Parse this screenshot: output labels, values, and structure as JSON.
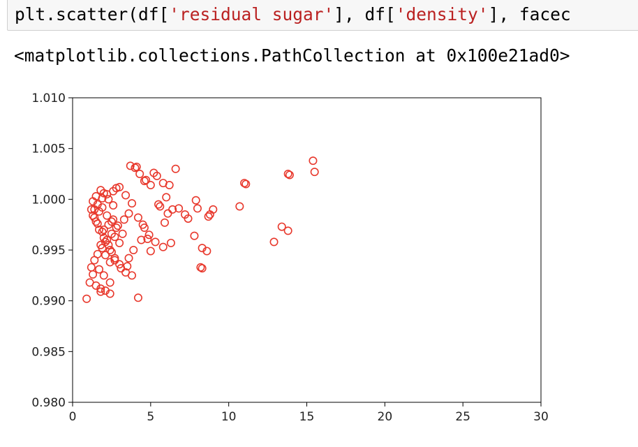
{
  "code_cell": {
    "prefix": "plt.scatter(df[",
    "arg1": "'residual sugar'",
    "mid": "], df[",
    "arg2": "'density'",
    "suffix": "], facec"
  },
  "output": {
    "text": "<matplotlib.collections.PathCollection at 0x100e21ad0>"
  },
  "chart_data": {
    "type": "scatter",
    "title": "",
    "xlabel": "",
    "ylabel": "",
    "xlim": [
      0,
      30
    ],
    "ylim": [
      0.98,
      1.01
    ],
    "x_ticks": [
      "0",
      "5",
      "10",
      "15",
      "20",
      "25",
      "30"
    ],
    "y_ticks": [
      "0.980",
      "0.985",
      "0.990",
      "0.995",
      "1.000",
      "1.005",
      "1.010"
    ],
    "grid": false,
    "marker": {
      "shape": "circle",
      "face": "none",
      "edge_color": "#e8382c"
    },
    "series": [
      {
        "x": [
          0.9,
          4.2,
          2.4,
          1.8,
          15.4,
          15.5,
          13.8,
          13.9,
          11.0,
          11.1,
          10.7,
          13.4,
          12.9,
          13.8,
          8.3,
          8.3,
          8.6,
          8.2,
          9.0,
          8.8,
          8.7,
          7.9,
          8.0,
          7.8,
          6.6,
          6.2,
          6.0,
          5.8,
          5.4,
          5.2,
          5.6,
          4.0,
          4.1,
          3.7,
          4.3,
          4.6,
          4.7,
          5.0,
          5.5,
          6.1,
          6.4,
          6.8,
          7.2,
          7.4,
          5.9,
          6.3,
          5.8,
          5.3,
          4.9,
          4.5,
          5.0,
          4.8,
          3.5,
          3.6,
          3.9,
          4.4,
          4.6,
          4.2,
          3.8,
          3.4,
          3.0,
          2.8,
          2.6,
          2.2,
          1.9,
          1.6,
          1.4,
          1.3,
          1.5,
          1.7,
          2.0,
          2.3,
          2.5,
          2.7,
          3.1,
          1.2,
          1.3,
          1.1,
          1.5,
          1.8,
          2.1,
          2.4,
          2.0,
          1.7,
          1.4,
          1.6,
          1.9,
          2.2,
          2.5,
          2.9,
          3.3,
          3.6,
          2.6,
          2.3,
          2.0,
          1.8,
          1.5,
          1.3,
          1.2,
          1.4,
          1.6,
          1.9,
          2.1,
          2.4,
          2.7,
          3.0,
          3.4,
          3.8,
          1.7,
          1.9,
          2.2,
          2.5,
          2.8,
          3.2,
          2.0,
          2.3,
          2.6,
          1.8,
          2.1,
          2.4,
          2.7,
          3.0
        ],
        "y": [
          0.9902,
          0.9903,
          0.9907,
          0.9909,
          1.0038,
          1.0027,
          1.0025,
          1.0024,
          1.0016,
          1.0015,
          0.9993,
          0.9973,
          0.9958,
          0.9969,
          0.9952,
          0.9932,
          0.9949,
          0.9933,
          0.999,
          0.9985,
          0.9983,
          0.9999,
          0.9991,
          0.9964,
          1.003,
          1.0014,
          1.0002,
          1.0016,
          1.0023,
          1.0026,
          0.9993,
          1.0031,
          1.0032,
          1.0033,
          1.0025,
          1.0018,
          1.0019,
          1.0014,
          0.9995,
          0.9986,
          0.999,
          0.9991,
          0.9985,
          0.9981,
          0.9977,
          0.9957,
          0.9953,
          0.9958,
          0.9965,
          0.9975,
          0.9949,
          0.9961,
          0.9934,
          0.9942,
          0.995,
          0.996,
          0.9972,
          0.9982,
          0.9996,
          1.0004,
          1.0012,
          1.0011,
          1.0008,
          1.0005,
          1.0001,
          0.9995,
          0.999,
          0.9984,
          0.9978,
          0.997,
          0.9962,
          0.9955,
          0.9948,
          0.994,
          0.9932,
          0.9933,
          0.9926,
          0.9918,
          0.9915,
          0.9912,
          0.991,
          0.9918,
          0.9925,
          0.9931,
          0.994,
          0.9946,
          0.9952,
          0.996,
          0.9966,
          0.9974,
          0.998,
          0.9986,
          0.9994,
          1.0,
          1.0006,
          1.0009,
          1.0003,
          0.9998,
          0.999,
          0.9982,
          0.9976,
          0.9968,
          0.9958,
          0.995,
          0.9942,
          0.9936,
          0.9928,
          0.9925,
          0.9988,
          0.9992,
          0.9984,
          0.9978,
          0.9972,
          0.9966,
          0.997,
          0.9975,
          0.998,
          0.9955,
          0.9945,
          0.9938,
          0.9963,
          0.9957
        ]
      }
    ]
  }
}
